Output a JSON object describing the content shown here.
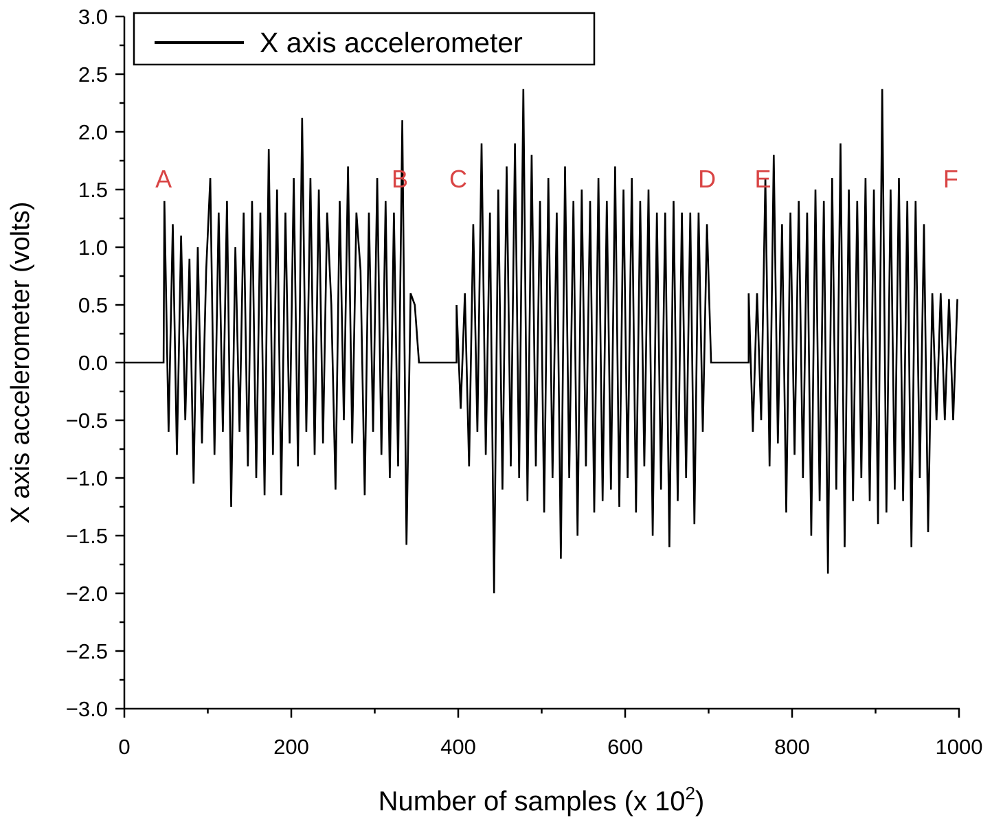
{
  "chart_data": {
    "type": "line",
    "title": "",
    "xlabel_main": "Number of samples (x 10",
    "xlabel_exp": "2",
    "xlabel_close": ")",
    "ylabel": "X axis accelerometer (volts)",
    "xlim": [
      0,
      1000
    ],
    "ylim": [
      -3.0,
      3.0
    ],
    "x_ticks": [
      "0",
      "200",
      "400",
      "600",
      "800",
      "1000"
    ],
    "x_tick_values": [
      0,
      200,
      400,
      600,
      800,
      1000
    ],
    "x_minor_step": 100,
    "y_ticks": [
      "−3.0",
      "−2.5",
      "−2.0",
      "−1.5",
      "−1.0",
      "−0.5",
      "0.0",
      "0.5",
      "1.0",
      "1.5",
      "2.0",
      "2.5",
      "3.0"
    ],
    "y_tick_values": [
      -3.0,
      -2.5,
      -2.0,
      -1.5,
      -1.0,
      -0.5,
      0.0,
      0.5,
      1.0,
      1.5,
      2.0,
      2.5,
      3.0
    ],
    "y_minor_step": 0.25,
    "grid": false,
    "legend": {
      "position": "top-left",
      "entries": [
        "X axis accelerometer"
      ]
    },
    "line_color": "#000000",
    "annotation_color": "#d94444",
    "annotations": [
      {
        "text": "A",
        "x": 47,
        "y": 1.6
      },
      {
        "text": "B",
        "x": 330,
        "y": 1.6
      },
      {
        "text": "C",
        "x": 400,
        "y": 1.6
      },
      {
        "text": "D",
        "x": 698,
        "y": 1.6
      },
      {
        "text": "E",
        "x": 765,
        "y": 1.6
      },
      {
        "text": "F",
        "x": 990,
        "y": 1.6
      }
    ],
    "series": [
      {
        "name": "X axis accelerometer",
        "segments": [
          {
            "x_start": 0,
            "x_step": 47,
            "y": [
              0,
              0
            ]
          },
          {
            "x_start": 48,
            "x_step": 5,
            "y": [
              1.4,
              -0.6,
              1.2,
              -0.8,
              1.1,
              -0.5,
              0.9,
              -1.05,
              1.0,
              -0.7,
              0.8,
              1.6,
              -0.8,
              1.3,
              -0.6,
              1.4,
              -1.25,
              1.0,
              -0.6,
              1.3,
              -0.9,
              1.4,
              -1.0,
              1.3,
              -1.15,
              1.85,
              -0.8,
              1.5,
              -1.15,
              1.3,
              -0.7,
              1.6,
              -0.9,
              2.12,
              -0.6,
              1.6,
              -0.8,
              1.5,
              -0.7,
              1.3,
              0.5,
              -1.1,
              1.4,
              -0.5,
              1.7,
              -0.7,
              1.3,
              0.8,
              -1.15,
              1.3,
              -0.6,
              1.6,
              -0.8,
              1.4,
              -1.0,
              1.3,
              -0.9,
              2.1,
              -1.58,
              0.6,
              0.5,
              0
            ]
          },
          {
            "x_start": 353,
            "x_step": 45,
            "y": [
              0,
              0
            ]
          },
          {
            "x_start": 398,
            "x_step": 5,
            "y": [
              0.5,
              -0.4,
              0.6,
              -0.9,
              1.2,
              -0.6,
              1.9,
              -0.8,
              1.3,
              -2.0,
              1.5,
              -1.1,
              1.7,
              -0.9,
              1.9,
              -1.0,
              2.37,
              -1.2,
              1.8,
              -0.9,
              1.4,
              -1.3,
              1.6,
              -1.0,
              1.3,
              -1.7,
              1.7,
              -1.0,
              1.4,
              -1.5,
              1.5,
              -0.9,
              1.4,
              -1.3,
              1.6,
              -1.2,
              1.4,
              -1.1,
              1.7,
              -1.25,
              1.5,
              -1.0,
              1.6,
              -1.3,
              1.4,
              -0.9,
              1.5,
              -1.5,
              1.3,
              -1.1,
              1.3,
              -1.6,
              1.4,
              -1.2,
              1.3,
              -1.0,
              1.3,
              -1.4,
              1.3,
              -0.6,
              1.2,
              0.0
            ]
          },
          {
            "x_start": 703,
            "x_step": 45,
            "y": [
              0,
              0
            ]
          },
          {
            "x_start": 748,
            "x_step": 5,
            "y": [
              0.6,
              -0.6,
              0.6,
              -0.5,
              1.6,
              -0.9,
              1.8,
              -0.7,
              1.2,
              -1.3,
              1.3,
              -0.8,
              1.4,
              -1.0,
              1.3,
              -1.5,
              1.5,
              -1.2,
              1.4,
              -1.83,
              1.6,
              -1.1,
              1.9,
              -1.6,
              1.5,
              -1.2,
              1.4,
              -1.0,
              1.6,
              -1.2,
              1.5,
              -1.4,
              2.37,
              -1.3,
              1.5,
              -1.1,
              1.6,
              -1.2,
              1.4,
              -1.6,
              1.4,
              -1.0,
              1.2,
              -1.47,
              0.6,
              -0.5,
              0.6,
              -0.5,
              0.55,
              -0.5,
              0.55
            ]
          }
        ]
      }
    ]
  }
}
